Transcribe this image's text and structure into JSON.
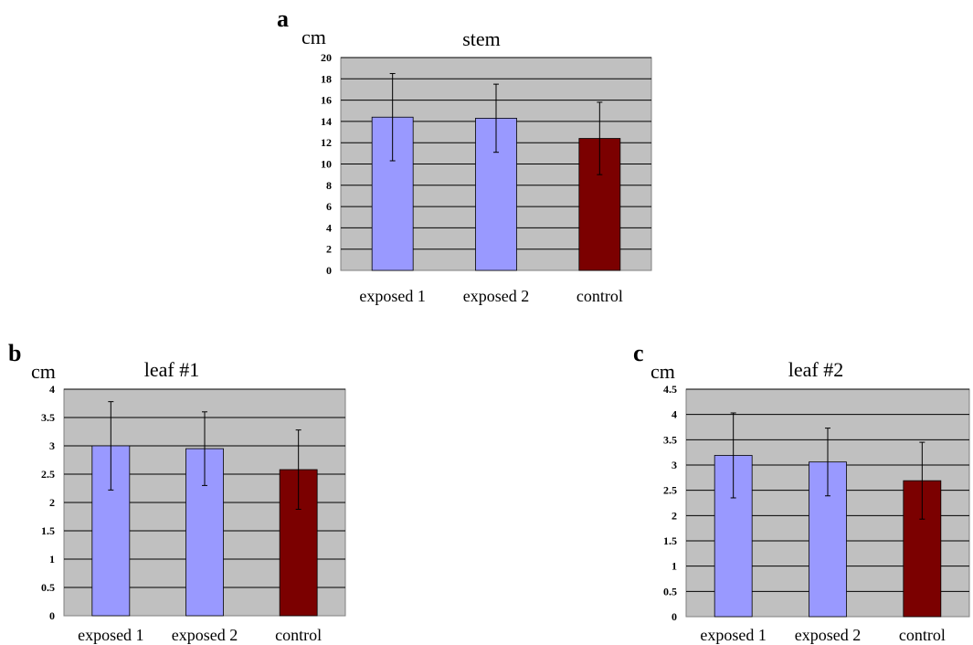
{
  "colors": {
    "plot_background": "#c0c0c0",
    "grid": "#000000",
    "exposed": "#9999ff",
    "control": "#7b0000"
  },
  "chart_data": [
    {
      "panel": "a",
      "type": "bar",
      "title": "stem",
      "ylabel": "cm",
      "categories": [
        "exposed 1",
        "exposed 2",
        "control"
      ],
      "values": [
        14.4,
        14.3,
        12.4
      ],
      "error": [
        4.1,
        3.2,
        3.4
      ],
      "bar_colors": [
        "#9999ff",
        "#9999ff",
        "#7b0000"
      ],
      "ylim": [
        0,
        20
      ],
      "yticks": [
        "0",
        "2",
        "4",
        "6",
        "8",
        "10",
        "12",
        "14",
        "16",
        "18",
        "20"
      ],
      "grid": true
    },
    {
      "panel": "b",
      "type": "bar",
      "title": "leaf #1",
      "ylabel": "cm",
      "categories": [
        "exposed 1",
        "exposed 2",
        "control"
      ],
      "values": [
        3.0,
        2.95,
        2.58
      ],
      "error": [
        0.78,
        0.65,
        0.7
      ],
      "bar_colors": [
        "#9999ff",
        "#9999ff",
        "#7b0000"
      ],
      "ylim": [
        0,
        4
      ],
      "yticks": [
        "0",
        "0.5",
        "1",
        "1.5",
        "2",
        "2.5",
        "3",
        "3.5",
        "4"
      ],
      "grid": true
    },
    {
      "panel": "c",
      "type": "bar",
      "title": "leaf #2",
      "ylabel": "cm",
      "categories": [
        "exposed 1",
        "exposed 2",
        "control"
      ],
      "values": [
        3.19,
        3.06,
        2.69
      ],
      "error": [
        0.84,
        0.67,
        0.76
      ],
      "bar_colors": [
        "#9999ff",
        "#9999ff",
        "#7b0000"
      ],
      "ylim": [
        0,
        4.5
      ],
      "yticks": [
        "0",
        "0.5",
        "1",
        "1.5",
        "2",
        "2.5",
        "3",
        "3.5",
        "4",
        "4.5"
      ],
      "grid": true
    }
  ]
}
